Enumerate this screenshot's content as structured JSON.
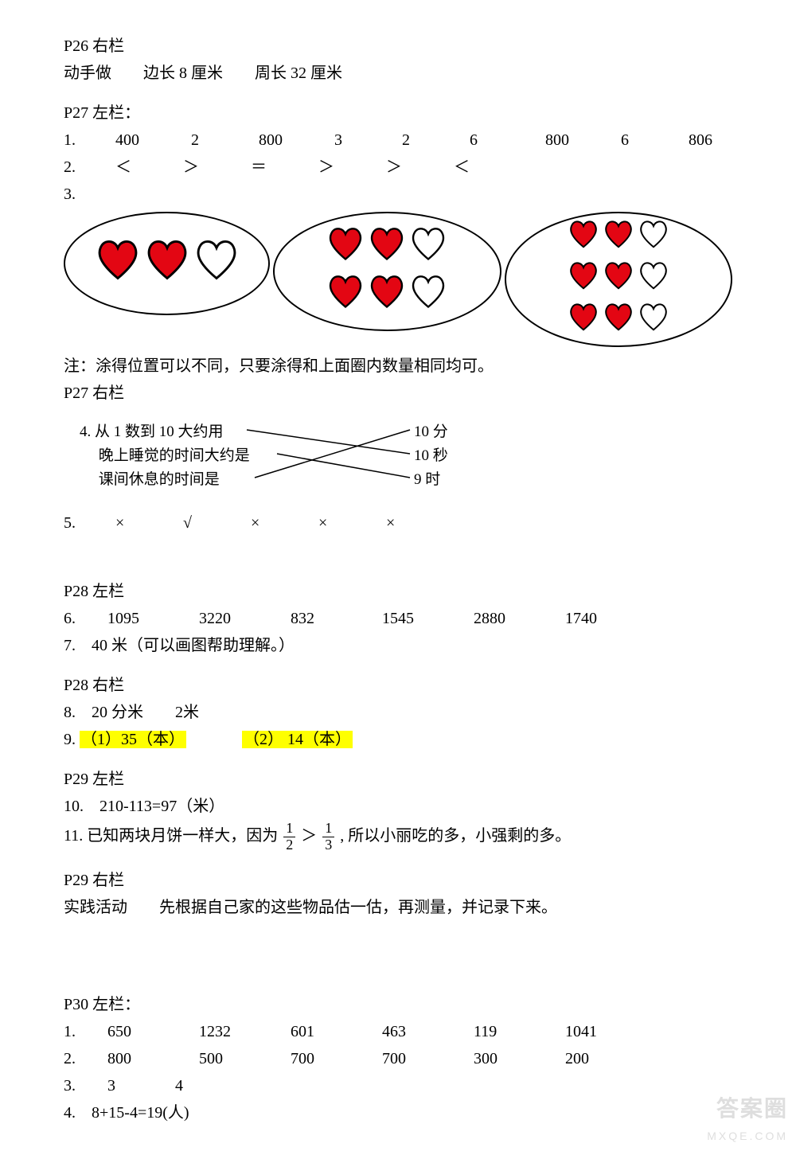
{
  "p26r": {
    "title": "P26 右栏",
    "line": "动手做　　边长 8 厘米　　周长 32 厘米"
  },
  "p27l": {
    "title": "P27 左栏：",
    "q1": {
      "label": "1.",
      "vals": [
        "400",
        "2",
        "800",
        "3",
        "2",
        "6",
        "800",
        "6",
        "806"
      ]
    },
    "q2": {
      "label": "2.",
      "vals": [
        "＜",
        "＞",
        "＝",
        "＞",
        "＞",
        "＜"
      ]
    },
    "q3": {
      "label": "3.",
      "hearts": {
        "filled_color": "#e30613",
        "outline_color": "#000000",
        "oval1": [
          [
            true
          ],
          [
            true
          ],
          [
            false
          ]
        ],
        "oval2": [
          [
            true,
            true
          ],
          [
            true,
            true
          ],
          [
            false,
            false
          ]
        ],
        "oval3": [
          [
            true,
            true,
            true
          ],
          [
            true,
            true,
            true
          ],
          [
            false,
            false,
            false
          ]
        ]
      }
    },
    "note": "  注：涂得位置可以不同，只要涂得和上面圈内数量相同均可。"
  },
  "p27r": {
    "title": "P27 右栏",
    "q4": {
      "left": [
        "4. 从 1 数到 10 大约用",
        "　 晚上睡觉的时间大约是",
        "　 课间休息的时间是"
      ],
      "right": [
        "10 分",
        "10 秒",
        "9 时"
      ],
      "lines": [
        [
          0,
          1
        ],
        [
          1,
          2
        ],
        [
          2,
          0
        ]
      ],
      "line_color": "#000000"
    },
    "q5": {
      "label": "5.",
      "vals": [
        "×",
        "√",
        "×",
        "×",
        "×"
      ]
    }
  },
  "p28l": {
    "title": "P28 左栏",
    "q6": {
      "label": "6.",
      "vals": [
        "1095",
        "3220",
        "832",
        "1545",
        "2880",
        "1740"
      ]
    },
    "q7": "7.　40 米（可以画图帮助理解。）"
  },
  "p28r": {
    "title": "P28 右栏",
    "q8": "8.　20 分米　　2米",
    "q9": {
      "label": "9.",
      "a": "（1）35（本）",
      "b": "（2） 14（本）"
    }
  },
  "p29l": {
    "title": "P29 左栏",
    "q10": "10.　210-113=97（米）",
    "q11_a": "11. 已知两块月饼一样大，因为",
    "q11_b": ", 所以小丽吃的多，小强剩的多。",
    "frac1": {
      "n": "1",
      "d": "2"
    },
    "cmp": "＞",
    "frac2": {
      "n": "1",
      "d": "3"
    }
  },
  "p29r": {
    "title": "P29 右栏",
    "line": "实践活动　　先根据自己家的这些物品估一估，再测量，并记录下来。"
  },
  "p30l": {
    "title": "P30 左栏：",
    "q1": {
      "label": "1.",
      "vals": [
        "650",
        "1232",
        "601",
        "463",
        "119",
        "1041"
      ]
    },
    "q2": {
      "label": "2.",
      "vals": [
        "800",
        "500",
        "700",
        "700",
        "300",
        "200"
      ]
    },
    "q3": {
      "label": "3.",
      "vals": [
        "3",
        "4"
      ]
    },
    "q4": "4.　8+15-4=19(人)"
  },
  "watermark": {
    "top": "答案圈",
    "bottom": "MXQE.COM"
  }
}
